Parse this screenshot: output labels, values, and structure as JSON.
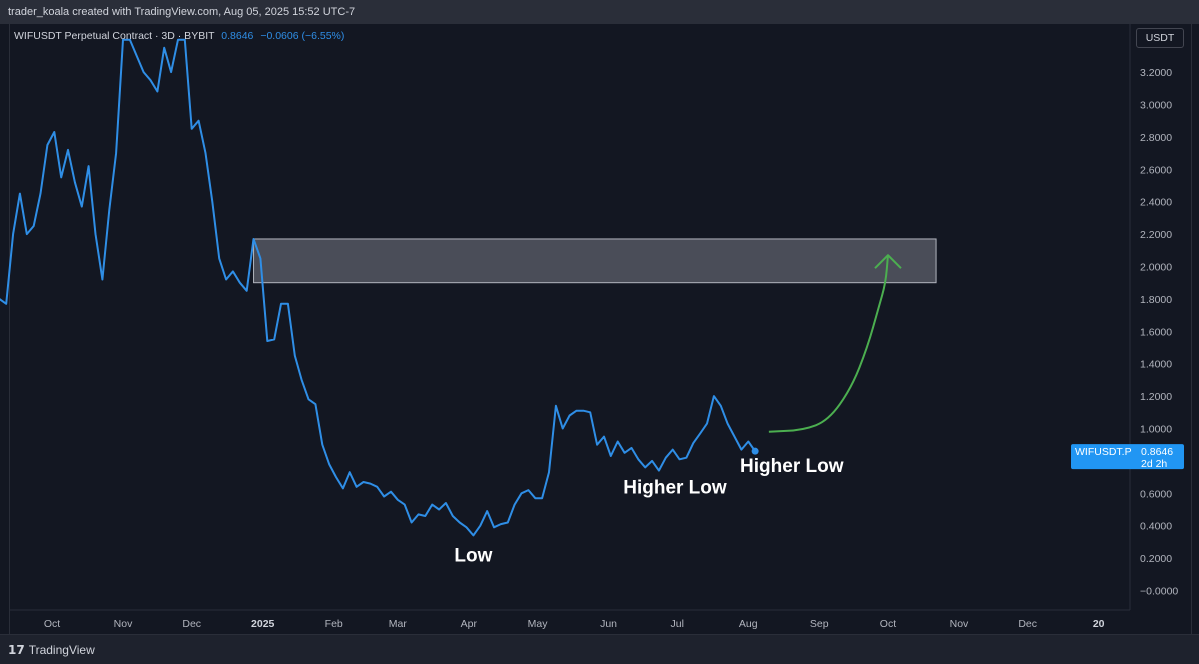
{
  "header": {
    "attribution": "trader_koala created with TradingView.com, Aug 05, 2025 15:52 UTC-7"
  },
  "symbol": {
    "description": "WIFUSDT Perpetual Contract · 3D · BYBIT",
    "price": "0.8646",
    "change": "−0.0606 (−6.55%)"
  },
  "currency_button": "USDT",
  "price_label": {
    "symbol": "WIFUSDT.P",
    "price": "0.8646",
    "countdown": "2d 2h"
  },
  "footer": {
    "brand": "TradingView"
  },
  "colors": {
    "background": "#131722",
    "line": "#2f8ee6",
    "projection": "#4caf50",
    "zone_fill": "#5d606b",
    "zone_stroke": "#b2b5be",
    "text": "#d1d4dc"
  },
  "chart_data": {
    "type": "line",
    "title": "WIFUSDT Perpetual Contract · 3D · BYBIT",
    "xlabel": "",
    "ylabel": "",
    "ylim": [
      -0.1,
      3.4
    ],
    "grid": false,
    "y_ticks": [
      "3.2000",
      "3.0000",
      "2.8000",
      "2.6000",
      "2.4000",
      "2.2000",
      "2.0000",
      "1.8000",
      "1.6000",
      "1.4000",
      "1.2000",
      "1.0000",
      "0.8000",
      "0.6000",
      "0.4000",
      "0.2000",
      "−0.0000"
    ],
    "y_tick_values": [
      3.2,
      3.0,
      2.8,
      2.6,
      2.4,
      2.2,
      2.0,
      1.8,
      1.6,
      1.4,
      1.2,
      1.0,
      0.8,
      0.6,
      0.4,
      0.2,
      0.0
    ],
    "x_ticks": [
      {
        "label": "Oct",
        "date": "2024-10-01",
        "bold": false
      },
      {
        "label": "Nov",
        "date": "2024-11-01",
        "bold": false
      },
      {
        "label": "Dec",
        "date": "2024-12-01",
        "bold": false
      },
      {
        "label": "2025",
        "date": "2025-01-01",
        "bold": true
      },
      {
        "label": "Feb",
        "date": "2025-02-01",
        "bold": false
      },
      {
        "label": "Mar",
        "date": "2025-03-01",
        "bold": false
      },
      {
        "label": "Apr",
        "date": "2025-04-01",
        "bold": false
      },
      {
        "label": "May",
        "date": "2025-05-01",
        "bold": false
      },
      {
        "label": "Jun",
        "date": "2025-06-01",
        "bold": false
      },
      {
        "label": "Jul",
        "date": "2025-07-01",
        "bold": false
      },
      {
        "label": "Aug",
        "date": "2025-08-01",
        "bold": false
      },
      {
        "label": "Sep",
        "date": "2025-09-01",
        "bold": false
      },
      {
        "label": "Oct",
        "date": "2025-10-01",
        "bold": false
      },
      {
        "label": "Nov",
        "date": "2025-11-01",
        "bold": false
      },
      {
        "label": "Dec",
        "date": "2025-12-01",
        "bold": false
      },
      {
        "label": "20",
        "date": "2026-01-01",
        "bold": true
      }
    ],
    "series": [
      {
        "points": [
          [
            "2024-09-05",
            1.54
          ],
          [
            "2024-09-08",
            1.8
          ],
          [
            "2024-09-11",
            1.77
          ],
          [
            "2024-09-14",
            2.2
          ],
          [
            "2024-09-17",
            2.45
          ],
          [
            "2024-09-20",
            2.2
          ],
          [
            "2024-09-23",
            2.25
          ],
          [
            "2024-09-26",
            2.45
          ],
          [
            "2024-09-29",
            2.75
          ],
          [
            "2024-10-02",
            2.83
          ],
          [
            "2024-10-05",
            2.55
          ],
          [
            "2024-10-08",
            2.72
          ],
          [
            "2024-10-11",
            2.52
          ],
          [
            "2024-10-14",
            2.37
          ],
          [
            "2024-10-17",
            2.62
          ],
          [
            "2024-10-20",
            2.2
          ],
          [
            "2024-10-23",
            1.92
          ],
          [
            "2024-10-26",
            2.35
          ],
          [
            "2024-10-29",
            2.7
          ],
          [
            "2024-11-01",
            3.4
          ],
          [
            "2024-11-04",
            3.4
          ],
          [
            "2024-11-07",
            3.3
          ],
          [
            "2024-11-10",
            3.2
          ],
          [
            "2024-11-13",
            3.15
          ],
          [
            "2024-11-16",
            3.08
          ],
          [
            "2024-11-19",
            3.35
          ],
          [
            "2024-11-22",
            3.2
          ],
          [
            "2024-11-25",
            3.4
          ],
          [
            "2024-11-28",
            3.4
          ],
          [
            "2024-12-01",
            2.85
          ],
          [
            "2024-12-04",
            2.9
          ],
          [
            "2024-12-07",
            2.7
          ],
          [
            "2024-12-10",
            2.4
          ],
          [
            "2024-12-13",
            2.05
          ],
          [
            "2024-12-16",
            1.92
          ],
          [
            "2024-12-19",
            1.97
          ],
          [
            "2024-12-22",
            1.9
          ],
          [
            "2024-12-25",
            1.85
          ],
          [
            "2024-12-28",
            2.17
          ],
          [
            "2024-12-31",
            2.05
          ],
          [
            "2025-01-03",
            1.54
          ],
          [
            "2025-01-06",
            1.55
          ],
          [
            "2025-01-09",
            1.77
          ],
          [
            "2025-01-12",
            1.77
          ],
          [
            "2025-01-15",
            1.45
          ],
          [
            "2025-01-18",
            1.3
          ],
          [
            "2025-01-21",
            1.18
          ],
          [
            "2025-01-24",
            1.15
          ],
          [
            "2025-01-27",
            0.9
          ],
          [
            "2025-01-30",
            0.78
          ],
          [
            "2025-02-02",
            0.7
          ],
          [
            "2025-02-05",
            0.63
          ],
          [
            "2025-02-08",
            0.73
          ],
          [
            "2025-02-11",
            0.64
          ],
          [
            "2025-02-14",
            0.67
          ],
          [
            "2025-02-17",
            0.66
          ],
          [
            "2025-02-20",
            0.64
          ],
          [
            "2025-02-23",
            0.58
          ],
          [
            "2025-02-26",
            0.61
          ],
          [
            "2025-03-01",
            0.56
          ],
          [
            "2025-03-04",
            0.53
          ],
          [
            "2025-03-07",
            0.42
          ],
          [
            "2025-03-10",
            0.47
          ],
          [
            "2025-03-13",
            0.46
          ],
          [
            "2025-03-16",
            0.53
          ],
          [
            "2025-03-19",
            0.5
          ],
          [
            "2025-03-22",
            0.54
          ],
          [
            "2025-03-25",
            0.46
          ],
          [
            "2025-03-28",
            0.42
          ],
          [
            "2025-03-31",
            0.39
          ],
          [
            "2025-04-03",
            0.34
          ],
          [
            "2025-04-06",
            0.4
          ],
          [
            "2025-04-09",
            0.49
          ],
          [
            "2025-04-12",
            0.39
          ],
          [
            "2025-04-15",
            0.41
          ],
          [
            "2025-04-18",
            0.42
          ],
          [
            "2025-04-21",
            0.53
          ],
          [
            "2025-04-24",
            0.6
          ],
          [
            "2025-04-27",
            0.62
          ],
          [
            "2025-04-30",
            0.57
          ],
          [
            "2025-05-03",
            0.57
          ],
          [
            "2025-05-06",
            0.73
          ],
          [
            "2025-05-09",
            1.14
          ],
          [
            "2025-05-12",
            1.0
          ],
          [
            "2025-05-15",
            1.08
          ],
          [
            "2025-05-18",
            1.11
          ],
          [
            "2025-05-21",
            1.11
          ],
          [
            "2025-05-24",
            1.1
          ],
          [
            "2025-05-27",
            0.9
          ],
          [
            "2025-05-30",
            0.95
          ],
          [
            "2025-06-02",
            0.83
          ],
          [
            "2025-06-05",
            0.92
          ],
          [
            "2025-06-08",
            0.85
          ],
          [
            "2025-06-11",
            0.88
          ],
          [
            "2025-06-14",
            0.81
          ],
          [
            "2025-06-17",
            0.76
          ],
          [
            "2025-06-20",
            0.8
          ],
          [
            "2025-06-23",
            0.74
          ],
          [
            "2025-06-26",
            0.82
          ],
          [
            "2025-06-29",
            0.87
          ],
          [
            "2025-07-02",
            0.81
          ],
          [
            "2025-07-05",
            0.82
          ],
          [
            "2025-07-08",
            0.91
          ],
          [
            "2025-07-11",
            0.97
          ],
          [
            "2025-07-14",
            1.03
          ],
          [
            "2025-07-17",
            1.2
          ],
          [
            "2025-07-20",
            1.14
          ],
          [
            "2025-07-23",
            1.03
          ],
          [
            "2025-07-26",
            0.95
          ],
          [
            "2025-07-29",
            0.87
          ],
          [
            "2025-08-01",
            0.92
          ],
          [
            "2025-08-04",
            0.86
          ]
        ]
      }
    ],
    "zone": {
      "from": "2024-12-28",
      "to": "2025-10-22",
      "low": 1.9,
      "high": 2.17
    },
    "projection": {
      "points": [
        [
          "2025-08-10",
          0.98
        ],
        [
          "2025-08-25",
          0.99
        ],
        [
          "2025-09-05",
          1.05
        ],
        [
          "2025-09-15",
          1.25
        ],
        [
          "2025-09-22",
          1.5
        ],
        [
          "2025-09-27",
          1.75
        ],
        [
          "2025-09-30",
          1.9
        ],
        [
          "2025-10-01",
          2.07
        ]
      ]
    },
    "annotations": [
      {
        "text": "Low",
        "date": "2025-04-03",
        "value": 0.18
      },
      {
        "text": "Higher Low",
        "date": "2025-06-30",
        "value": 0.6
      },
      {
        "text": "Higher Low",
        "date": "2025-08-20",
        "value": 0.73
      }
    ]
  }
}
